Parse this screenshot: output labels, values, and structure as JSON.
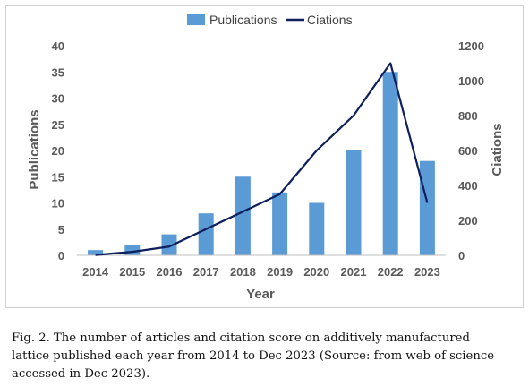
{
  "caption": {
    "line1": "Fig. 2. The number of articles and citation score on additively manufactured",
    "line2": "lattice published each year from 2014 to Dec 2023 (Source: from web of science",
    "line3": "accessed in Dec 2023)."
  },
  "colors": {
    "bar": "#5b9bd5",
    "line": "#0d1f5c",
    "tick_text": "#595959",
    "axis": "#bfbfbf"
  },
  "chart_data": {
    "type": "bar",
    "combo": "bar+line (dual y-axis)",
    "xlabel": "Year",
    "ylabel": "Publications",
    "y2label": "Ciations",
    "categories": [
      "2014",
      "2015",
      "2016",
      "2017",
      "2018",
      "2019",
      "2020",
      "2021",
      "2022",
      "2023"
    ],
    "ylim": [
      0,
      40
    ],
    "yticks": [
      "0",
      "5",
      "10",
      "15",
      "20",
      "25",
      "30",
      "35",
      "40"
    ],
    "y2lim": [
      0,
      1200
    ],
    "y2ticks": [
      "0",
      "200",
      "400",
      "600",
      "800",
      "1000",
      "1200"
    ],
    "series": [
      {
        "name": "Publications",
        "type": "bar",
        "axis": "left",
        "values": [
          1,
          2,
          4,
          8,
          15,
          12,
          10,
          20,
          35,
          18
        ]
      },
      {
        "name": "Ciations",
        "type": "line",
        "axis": "right",
        "values": [
          2,
          20,
          50,
          150,
          250,
          350,
          600,
          800,
          1100,
          300
        ]
      }
    ],
    "legend_position": "top-center",
    "grid": false
  }
}
